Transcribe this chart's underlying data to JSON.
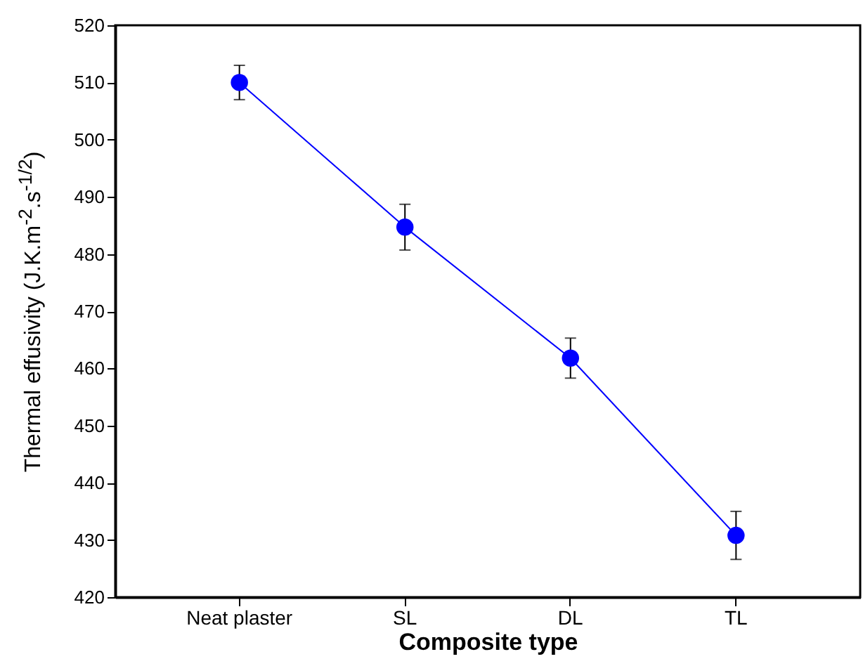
{
  "chart_data": {
    "type": "line",
    "xlabel": "Composite type",
    "ylabel": "Thermal effusivity (J.K.m$^{-2}$.s$^{-1/2}$)",
    "categories": [
      "Neat plaster",
      "SL",
      "DL",
      "TL"
    ],
    "series": [
      {
        "color": "#0000ff",
        "values": [
          510,
          484.7,
          461.8,
          430.8
        ],
        "errors": [
          3,
          4,
          3.5,
          4.2
        ]
      }
    ],
    "ylim": [
      420,
      520
    ],
    "yticks": [
      420,
      430,
      440,
      450,
      460,
      470,
      480,
      490,
      500,
      510,
      520
    ],
    "marker": "circle",
    "line_style": "solid"
  }
}
